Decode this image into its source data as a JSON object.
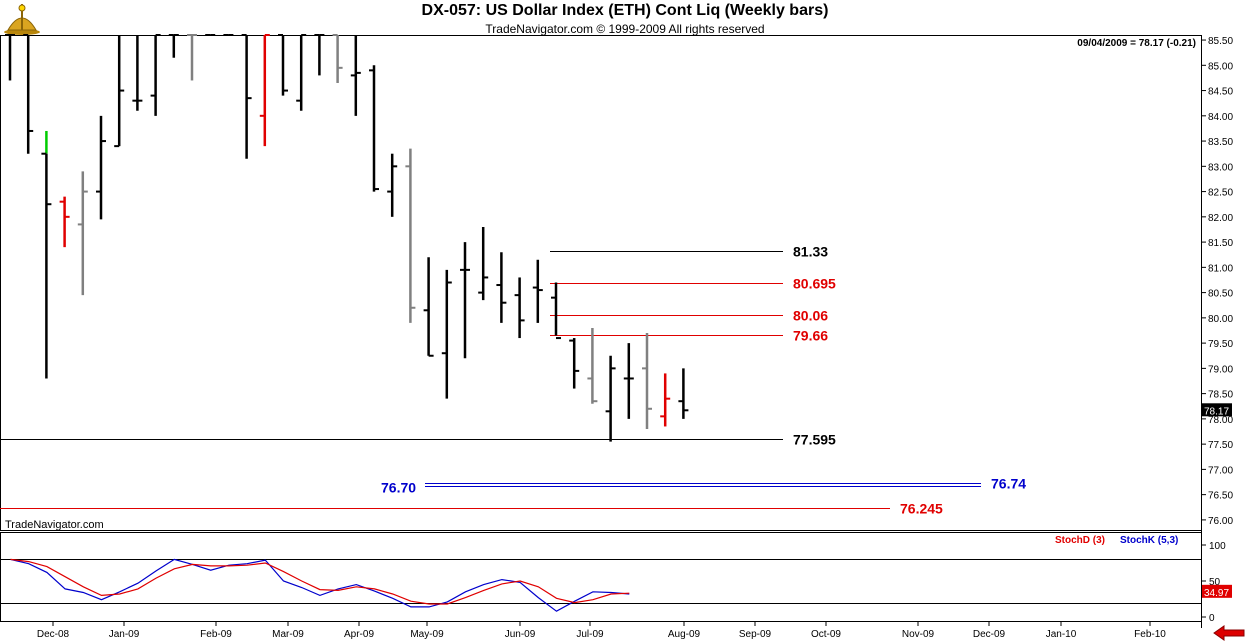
{
  "header": {
    "title": "DX-057:  US Dollar Index (ETH) Cont Liq  (Weekly bars)",
    "subtitle": "TradeNavigator.com © 1999-2009 All rights reserved"
  },
  "chart_data": [
    {
      "type": "ohlc",
      "last_quote": "09/04/2009 = 78.17 (-0.21)",
      "watermark": "TradeNavigator.com",
      "last_price_label": "78.17",
      "ylim": [
        75.8,
        85.6
      ],
      "y_ticks": [
        "85.50",
        "85.00",
        "84.50",
        "84.00",
        "83.50",
        "83.00",
        "82.50",
        "82.00",
        "81.50",
        "81.00",
        "80.50",
        "80.00",
        "79.50",
        "79.00",
        "78.50",
        "78.00",
        "77.50",
        "77.00",
        "76.50",
        "76.00"
      ],
      "x_ticks": [
        "Dec-08",
        "Jan-09",
        "Feb-09",
        "Mar-09",
        "Apr-09",
        "May-09",
        "Jun-09",
        "Jul-09",
        "Aug-09",
        "Sep-09",
        "Oct-09",
        "Nov-09",
        "Dec-09",
        "Jan-10",
        "Feb-10"
      ],
      "colors": {
        "up": "#000000",
        "down_inside": "#808080",
        "red": "#e00000",
        "green": "#00cc00",
        "blue": "#0000cc"
      },
      "bars": [
        {
          "o": 85.6,
          "h": 85.6,
          "l": 84.7,
          "c": 85.6,
          "col": "k"
        },
        {
          "o": 85.6,
          "h": 85.6,
          "l": 83.25,
          "c": 83.7,
          "col": "k"
        },
        {
          "o": 83.25,
          "h": 83.7,
          "l": 78.8,
          "c": 82.25,
          "col": "k",
          "top": "g"
        },
        {
          "o": 82.3,
          "h": 82.4,
          "l": 81.4,
          "c": 82.0,
          "col": "r"
        },
        {
          "o": 81.85,
          "h": 82.9,
          "l": 80.45,
          "c": 82.5,
          "col": "gr"
        },
        {
          "o": 82.5,
          "h": 84.0,
          "l": 81.95,
          "c": 83.5,
          "col": "k"
        },
        {
          "o": 83.4,
          "h": 85.6,
          "l": 83.4,
          "c": 84.5,
          "col": "k"
        },
        {
          "o": 84.3,
          "h": 85.6,
          "l": 84.1,
          "c": 84.3,
          "col": "k"
        },
        {
          "o": 84.4,
          "h": 85.6,
          "l": 84.0,
          "c": 85.6,
          "col": "k"
        },
        {
          "o": 85.6,
          "h": 85.6,
          "l": 85.15,
          "c": 85.6,
          "col": "k"
        },
        {
          "o": 85.6,
          "h": 85.6,
          "l": 84.7,
          "c": 85.6,
          "col": "gr"
        },
        {
          "o": 85.6,
          "h": 85.6,
          "l": 85.6,
          "c": 85.6,
          "col": "k"
        },
        {
          "o": 85.6,
          "h": 85.6,
          "l": 85.6,
          "c": 85.6,
          "col": "k"
        },
        {
          "o": 85.6,
          "h": 85.6,
          "l": 83.15,
          "c": 84.35,
          "col": "k"
        },
        {
          "o": 84.0,
          "h": 85.6,
          "l": 83.4,
          "c": 85.6,
          "col": "r"
        },
        {
          "o": 85.6,
          "h": 85.6,
          "l": 84.4,
          "c": 84.5,
          "col": "k"
        },
        {
          "o": 84.3,
          "h": 85.6,
          "l": 84.1,
          "c": 85.6,
          "col": "k"
        },
        {
          "o": 85.6,
          "h": 85.6,
          "l": 84.8,
          "c": 85.6,
          "col": "k"
        },
        {
          "o": 85.6,
          "h": 85.6,
          "l": 84.65,
          "c": 84.95,
          "col": "gr"
        },
        {
          "o": 84.8,
          "h": 85.6,
          "l": 84.0,
          "c": 84.85,
          "col": "k"
        },
        {
          "o": 84.9,
          "h": 85.0,
          "l": 82.5,
          "c": 82.55,
          "col": "k"
        },
        {
          "o": 82.5,
          "h": 83.25,
          "l": 82.0,
          "c": 83.0,
          "col": "k"
        },
        {
          "o": 83.0,
          "h": 83.35,
          "l": 79.9,
          "c": 80.2,
          "col": "gr"
        },
        {
          "o": 80.15,
          "h": 81.2,
          "l": 79.25,
          "c": 79.25,
          "col": "k"
        },
        {
          "o": 79.3,
          "h": 80.95,
          "l": 78.4,
          "c": 80.7,
          "col": "k"
        },
        {
          "o": 80.95,
          "h": 81.5,
          "l": 79.2,
          "c": 80.95,
          "col": "k"
        },
        {
          "o": 80.5,
          "h": 81.8,
          "l": 80.35,
          "c": 80.8,
          "col": "k"
        },
        {
          "o": 80.65,
          "h": 81.3,
          "l": 79.9,
          "c": 80.3,
          "col": "k"
        },
        {
          "o": 80.45,
          "h": 80.8,
          "l": 79.6,
          "c": 79.95,
          "col": "k"
        },
        {
          "o": 80.6,
          "h": 81.15,
          "l": 79.9,
          "c": 80.55,
          "col": "k"
        },
        {
          "o": 80.4,
          "h": 80.7,
          "l": 79.65,
          "c": 79.6,
          "col": "k"
        },
        {
          "o": 79.55,
          "h": 79.6,
          "l": 78.6,
          "c": 78.95,
          "col": "k"
        },
        {
          "o": 78.8,
          "h": 79.8,
          "l": 78.3,
          "c": 78.35,
          "col": "gr"
        },
        {
          "o": 78.15,
          "h": 79.25,
          "l": 77.55,
          "c": 79.0,
          "col": "k"
        },
        {
          "o": 78.8,
          "h": 79.5,
          "l": 78.0,
          "c": 78.8,
          "col": "k"
        },
        {
          "o": 79.0,
          "h": 79.7,
          "l": 77.8,
          "c": 78.2,
          "col": "gr"
        },
        {
          "o": 78.05,
          "h": 78.9,
          "l": 77.85,
          "c": 78.4,
          "col": "r"
        },
        {
          "o": 78.35,
          "h": 79.0,
          "l": 78.0,
          "c": 78.17,
          "col": "k"
        }
      ],
      "levels": [
        {
          "value": 81.33,
          "label": "81.33",
          "col": "k",
          "label_side": "right"
        },
        {
          "value": 80.695,
          "label": "80.695",
          "col": "r",
          "label_side": "right"
        },
        {
          "value": 80.06,
          "label": "80.06",
          "col": "r",
          "label_side": "right"
        },
        {
          "value": 79.66,
          "label": "79.66",
          "col": "r",
          "label_side": "right"
        },
        {
          "value": 77.595,
          "label": "77.595",
          "col": "k",
          "label_side": "right"
        },
        {
          "value": 76.74,
          "label": "76.74",
          "col": "b",
          "label_side": "right"
        },
        {
          "value": 76.7,
          "label": "76.70",
          "col": "b",
          "label_side": "left"
        },
        {
          "value": 76.245,
          "label": "76.245",
          "col": "r",
          "label_side": "right"
        }
      ]
    },
    {
      "type": "line",
      "legend": [
        {
          "label": "StochD (3)",
          "color": "#e00000"
        },
        {
          "label": "StochK (5,3)",
          "color": "#0000cc"
        }
      ],
      "ylim": [
        0,
        100
      ],
      "y_ticks": [
        "100",
        "50",
        "0"
      ],
      "reference_lines": [
        80,
        20
      ],
      "last_value_label": "34.97",
      "series": [
        {
          "color": "#0000cc",
          "values": [
            80,
            74,
            62,
            39,
            34,
            24,
            35,
            47,
            64,
            80,
            73,
            65,
            72,
            74,
            79,
            50,
            41,
            30,
            39,
            45,
            36,
            26,
            14,
            14,
            21,
            35,
            45,
            52,
            48,
            27,
            8,
            22,
            35,
            34,
            32
          ]
        },
        {
          "color": "#e00000",
          "values": [
            80,
            77,
            70,
            56,
            42,
            30,
            32,
            39,
            54,
            67,
            73,
            71,
            71,
            72,
            75,
            63,
            50,
            38,
            37,
            42,
            39,
            32,
            22,
            18,
            18,
            27,
            37,
            46,
            50,
            42,
            26,
            20,
            24,
            32,
            33
          ]
        }
      ]
    }
  ]
}
